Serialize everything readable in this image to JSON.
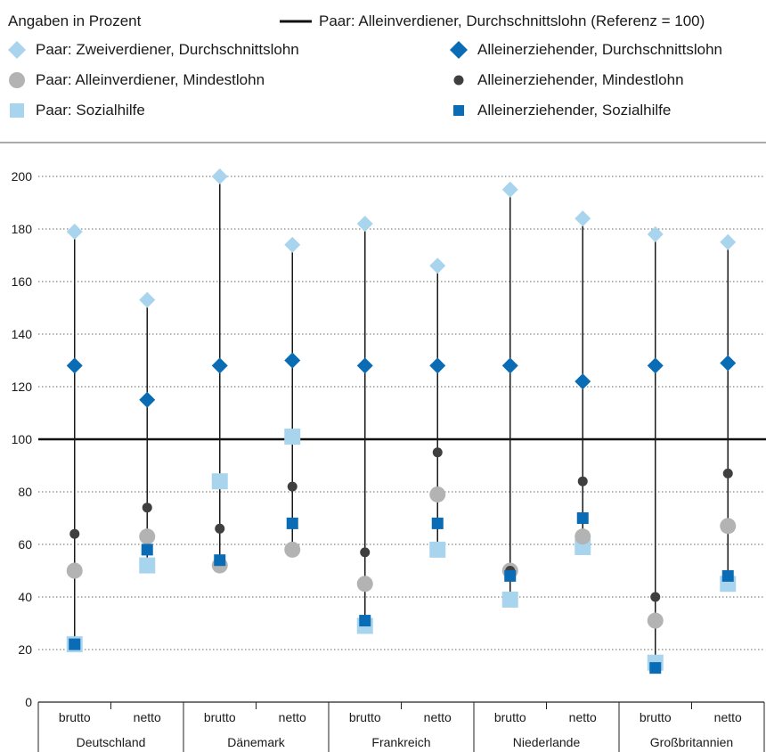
{
  "header": {
    "unit_label": "Angaben in Prozent"
  },
  "legend": [
    {
      "label": "Paar: Alleinverdiener, Durchschnittslohn (Referenz = 100)",
      "icon": "line"
    },
    {
      "label": "Paar: Zweiverdiener, Durchschnittslohn",
      "icon": "diamond"
    },
    {
      "label": "Alleinerziehender, Durchschnittslohn",
      "icon": "diamond"
    },
    {
      "label": "Paar: Alleinverdiener, Mindestlohn",
      "icon": "circle"
    },
    {
      "label": "Alleinerziehender, Mindestlohn",
      "icon": "circle"
    },
    {
      "label": "Paar: Sozialhilfe",
      "icon": "square"
    },
    {
      "label": "Alleinerziehender, Sozialhilfe",
      "icon": "square"
    }
  ],
  "colors": {
    "light_blue": "#a9d4ee",
    "dark_blue": "#0a6cb4",
    "grey": "#b3b3b3",
    "dark_grey": "#3f3f3f",
    "reference_line": "#111111"
  },
  "chart_data": {
    "type": "scatter",
    "ylim": [
      0,
      200
    ],
    "y_ticks": [
      0,
      20,
      40,
      60,
      80,
      100,
      120,
      140,
      160,
      180,
      200
    ],
    "grid": "horizontal dotted",
    "reference_value": 100,
    "groups": [
      "Deutschland",
      "Dänemark",
      "Frankreich",
      "Niederlande",
      "Großbritannien"
    ],
    "categories": [
      "brutto",
      "netto",
      "brutto",
      "netto",
      "brutto",
      "netto",
      "brutto",
      "netto",
      "brutto",
      "netto"
    ],
    "series": [
      {
        "name": "Paar: Zweiverdiener, Durchschnittslohn",
        "marker": "diamond",
        "color": "#a9d4ee",
        "values": [
          179,
          153,
          200,
          174,
          182,
          166,
          195,
          184,
          178,
          175
        ]
      },
      {
        "name": "Alleinerziehender, Durchschnittslohn",
        "marker": "diamond",
        "color": "#0a6cb4",
        "values": [
          128,
          115,
          128,
          130,
          128,
          128,
          128,
          122,
          128,
          129
        ]
      },
      {
        "name": "Paar: Alleinverdiener, Mindestlohn",
        "marker": "circle",
        "color": "#b3b3b3",
        "values": [
          50,
          63,
          52,
          58,
          45,
          79,
          50,
          63,
          31,
          67
        ]
      },
      {
        "name": "Alleinerziehender, Mindestlohn",
        "marker": "circle",
        "color": "#3f3f3f",
        "values": [
          64,
          74,
          66,
          82,
          57,
          95,
          50,
          84,
          40,
          87
        ]
      },
      {
        "name": "Paar: Sozialhilfe",
        "marker": "square",
        "color": "#a9d4ee",
        "values": [
          22,
          52,
          84,
          101,
          29,
          58,
          39,
          59,
          15,
          45
        ]
      },
      {
        "name": "Alleinerziehender, Sozialhilfe",
        "marker": "square",
        "color": "#0a6cb4",
        "values": [
          22,
          58,
          54,
          68,
          31,
          68,
          48,
          70,
          13,
          48
        ]
      }
    ]
  }
}
